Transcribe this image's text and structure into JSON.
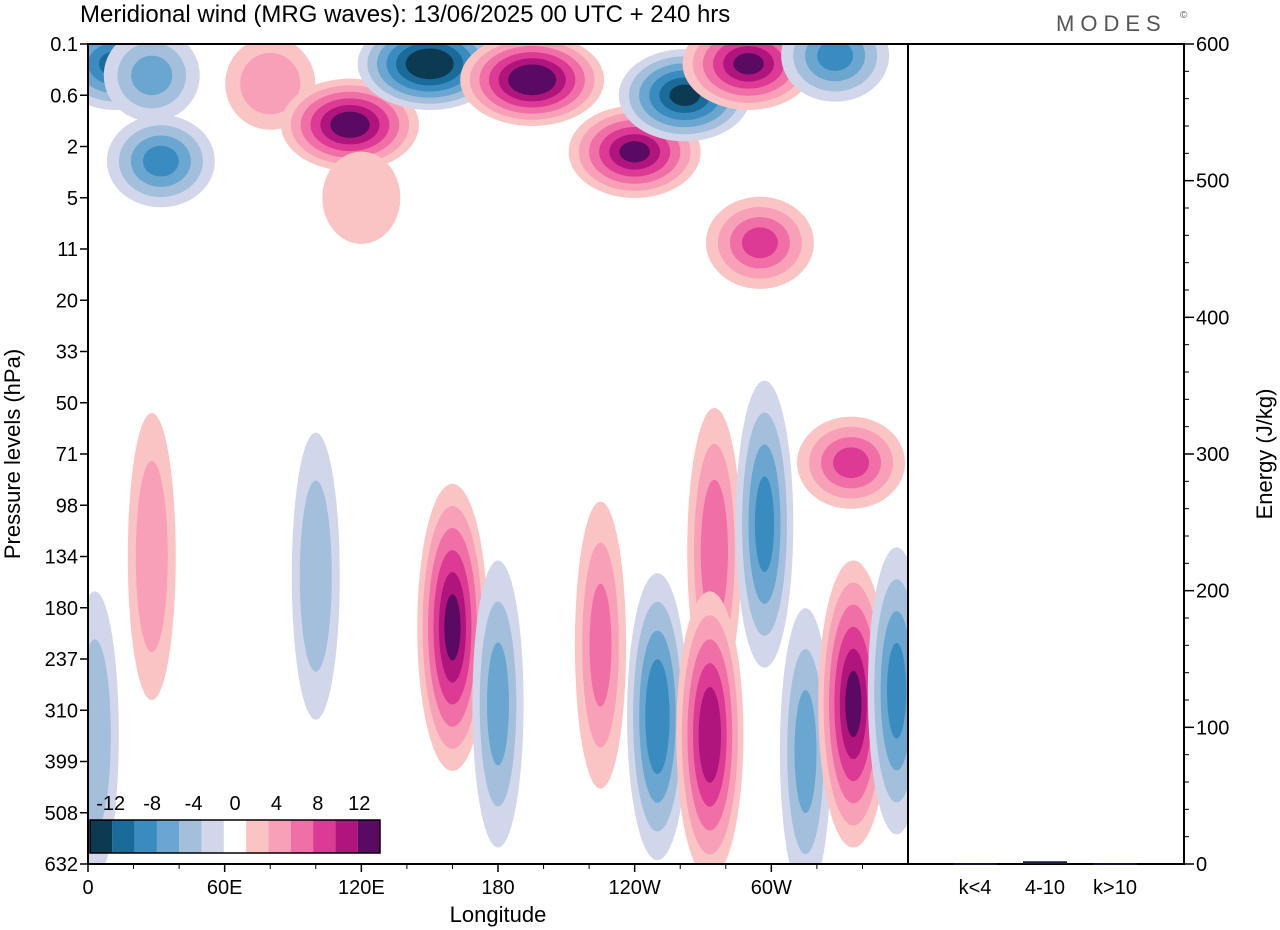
{
  "header": {
    "title": "Meridional wind (MRG waves):  13/06/2025  00 UTC  + 240 hrs",
    "brand": "MODES",
    "brand_mark": "©"
  },
  "colors": {
    "negative": [
      "#0b3a52",
      "#1a6a9a",
      "#3a8cc0",
      "#6aa6cf",
      "#a3bfdc",
      "#d2d6ea"
    ],
    "positive": [
      "#fbc4c4",
      "#f7a0b8",
      "#ef6fa6",
      "#dc3a94",
      "#b0157e",
      "#5a0a62"
    ],
    "background": "#ffffff",
    "axis": "#000000"
  },
  "chart_data": [
    {
      "type": "heatmap",
      "title": "Meridional wind (MRG waves):  13/06/2025  00 UTC  + 240 hrs",
      "xlabel": "Longitude",
      "ylabel": "Pressure levels (hPa)",
      "x_ticks": [
        "0",
        "60E",
        "120E",
        "180",
        "120W",
        "60W"
      ],
      "x_tick_values": [
        0,
        60,
        120,
        180,
        240,
        300
      ],
      "xlim": [
        0,
        360
      ],
      "y_ticks": [
        "0.1",
        "0.6",
        "2",
        "5",
        "11",
        "20",
        "33",
        "50",
        "71",
        "98",
        "134",
        "180",
        "237",
        "310",
        "399",
        "508",
        "632"
      ],
      "colorbar": {
        "levels": [
          -14,
          -12,
          -10,
          -8,
          -6,
          -4,
          -2,
          2,
          4,
          6,
          8,
          10,
          12,
          14
        ],
        "tick_labels": [
          "-12",
          "-8",
          "-4",
          "0",
          "4",
          "8",
          "12"
        ],
        "tick_values": [
          -12,
          -8,
          -4,
          0,
          4,
          8,
          12
        ]
      },
      "features": [
        {
          "lon": 12,
          "lev": 0.2,
          "value": -10
        },
        {
          "lon": 28,
          "lev": 0.3,
          "value": -6
        },
        {
          "lon": 32,
          "lev": 2.6,
          "value": -8
        },
        {
          "lon": 80,
          "lev": 0.4,
          "value": 5
        },
        {
          "lon": 115,
          "lev": 1.2,
          "value": 13
        },
        {
          "lon": 150,
          "lev": 0.2,
          "value": -14
        },
        {
          "lon": 195,
          "lev": 0.35,
          "value": 14
        },
        {
          "lon": 240,
          "lev": 2.2,
          "value": 12
        },
        {
          "lon": 262,
          "lev": 0.6,
          "value": -12
        },
        {
          "lon": 290,
          "lev": 0.2,
          "value": 12
        },
        {
          "lon": 328,
          "lev": 0.15,
          "value": -8
        },
        {
          "lon": 295,
          "lev": 10,
          "value": 8
        },
        {
          "lon": 120,
          "lev": 5,
          "value": 3
        },
        {
          "lon": 335,
          "lev": 75,
          "value": 8
        },
        {
          "lon": 28,
          "lev": 134,
          "value": 5
        },
        {
          "lon": 100,
          "lev": 150,
          "value": -5
        },
        {
          "lon": 160,
          "lev": 200,
          "value": 12
        },
        {
          "lon": 180,
          "lev": 300,
          "value": -6
        },
        {
          "lon": 225,
          "lev": 220,
          "value": 6
        },
        {
          "lon": 275,
          "lev": 130,
          "value": 7
        },
        {
          "lon": 297,
          "lev": 110,
          "value": -8
        },
        {
          "lon": 250,
          "lev": 320,
          "value": -9
        },
        {
          "lon": 273,
          "lev": 350,
          "value": 11
        },
        {
          "lon": 315,
          "lev": 380,
          "value": -6
        },
        {
          "lon": 336,
          "lev": 300,
          "value": 12
        },
        {
          "lon": 355,
          "lev": 280,
          "value": -8
        },
        {
          "lon": 3,
          "lev": 350,
          "value": -5
        }
      ]
    },
    {
      "type": "bar",
      "ylabel": "Energy (J/kg)",
      "categories": [
        "k<4",
        "4-10",
        "k>10"
      ],
      "values": [
        0.5,
        2,
        0.5
      ],
      "ylim": [
        0,
        600
      ],
      "y_ticks": [
        "0",
        "100",
        "200",
        "300",
        "400",
        "500",
        "600"
      ],
      "y_tick_values": [
        0,
        100,
        200,
        300,
        400,
        500,
        600
      ]
    }
  ]
}
